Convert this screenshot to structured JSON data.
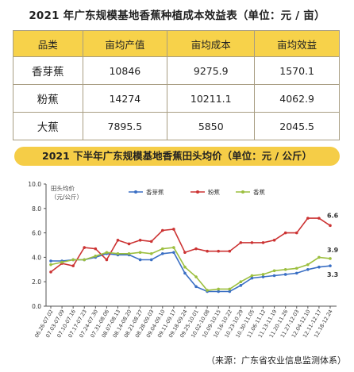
{
  "table_title": "2021 年广东规模基地香蕉种植成本效益表（单位：元 / 亩）",
  "table": {
    "headers": [
      "品类",
      "亩均产值",
      "亩均成本",
      "亩均效益"
    ],
    "rows": [
      [
        "香芽蕉",
        "10846",
        "9275.9",
        "1570.1"
      ],
      [
        "粉蕉",
        "14274",
        "10211.1",
        "4062.9"
      ],
      [
        "大蕉",
        "7895.5",
        "5850",
        "2045.5"
      ]
    ]
  },
  "chart_title": "2021 下半年广东规模基地香蕉田头均价（单位：元 / 公斤）",
  "source": "（来源：广东省农业信息监测体系）",
  "chart_data": {
    "type": "line",
    "ylabel_lines": [
      "田头均价",
      "（元/公斤）"
    ],
    "ylim": [
      0,
      10
    ],
    "yticks": [
      "0.0",
      "2.0",
      "4.0",
      "6.0",
      "8.0",
      "10.0"
    ],
    "categories": [
      "06.26-07.02",
      "07.03-07.09",
      "07.10-07.16",
      "07.17-07.23",
      "07.24-07.30",
      "07.31-08.06",
      "08.07-08.13",
      "08.14-08.20",
      "08.21-08.27",
      "08.28-09.03",
      "09.04-09.10",
      "09.11-09.17",
      "09.18-09.24",
      "09.25-10.01",
      "10.02-10.08",
      "10.09-10.15",
      "10.16-10.22",
      "10.23-10.29",
      "10.30-11.05",
      "11.06-11.12",
      "11.13-11.19",
      "11.20-11.26",
      "11.27-12.03",
      "12.04-12.10",
      "12.11-12.17",
      "12.18-12.24"
    ],
    "series": [
      {
        "name": "香芽蕉",
        "color": "#3a6fc4",
        "values": [
          3.7,
          3.7,
          3.8,
          3.8,
          4.0,
          4.3,
          4.2,
          4.2,
          3.8,
          3.8,
          4.3,
          4.4,
          2.7,
          1.6,
          1.2,
          1.2,
          1.2,
          1.7,
          2.3,
          2.4,
          2.5,
          2.6,
          2.7,
          3.0,
          3.2,
          3.3
        ]
      },
      {
        "name": "粉蕉",
        "color": "#cc3333",
        "values": [
          2.8,
          3.5,
          3.3,
          4.8,
          4.7,
          3.8,
          5.4,
          5.1,
          5.4,
          5.3,
          6.2,
          6.3,
          4.4,
          4.7,
          4.5,
          4.5,
          4.5,
          5.2,
          5.2,
          5.2,
          5.4,
          6.0,
          6.0,
          7.2,
          7.2,
          6.6
        ]
      },
      {
        "name": "香蕉",
        "color": "#9cbf3f",
        "values": [
          3.4,
          3.6,
          3.8,
          3.8,
          4.1,
          4.4,
          4.3,
          4.3,
          4.4,
          4.3,
          4.7,
          4.8,
          3.2,
          2.4,
          1.3,
          1.4,
          1.4,
          2.0,
          2.5,
          2.6,
          2.9,
          3.0,
          3.1,
          3.4,
          4.0,
          3.9
        ]
      }
    ],
    "end_labels": [
      "6.6",
      "3.9",
      "3.3"
    ]
  }
}
